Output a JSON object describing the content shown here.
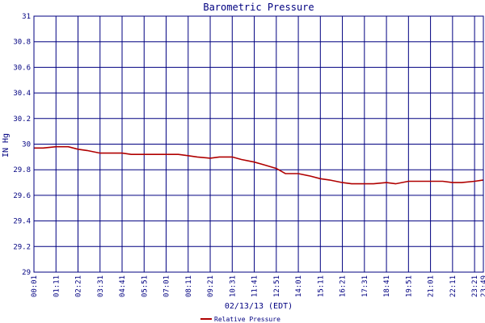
{
  "chart_data": {
    "type": "line",
    "title": "Barometric Pressure",
    "xlabel": "02/13/13 (EDT)",
    "ylabel": "IN Hg",
    "ylim": [
      29,
      31
    ],
    "yticks": [
      "29",
      "29.2",
      "29.4",
      "29.6",
      "29.8",
      "30",
      "30.2",
      "30.4",
      "30.6",
      "30.8",
      "31"
    ],
    "xticks": [
      "00:01",
      "01:11",
      "02:21",
      "03:31",
      "04:41",
      "05:51",
      "07:01",
      "08:11",
      "09:21",
      "10:31",
      "11:41",
      "12:51",
      "14:01",
      "15:11",
      "16:21",
      "17:31",
      "18:41",
      "19:51",
      "21:01",
      "22:11",
      "23:21",
      "23:49"
    ],
    "grid": true,
    "legend_position": "bottom-center",
    "colors": {
      "series": "#b00000",
      "grid": "#000080",
      "text": "#000080"
    },
    "series": [
      {
        "name": "Relative Pressure",
        "x": [
          "00:01",
          "00:30",
          "01:11",
          "01:50",
          "02:21",
          "02:50",
          "03:31",
          "04:00",
          "04:41",
          "05:10",
          "05:51",
          "06:20",
          "07:01",
          "07:40",
          "08:11",
          "08:40",
          "09:21",
          "09:50",
          "10:31",
          "11:00",
          "11:41",
          "12:10",
          "12:51",
          "13:20",
          "14:01",
          "14:40",
          "15:11",
          "15:40",
          "16:21",
          "16:50",
          "17:31",
          "18:00",
          "18:41",
          "19:10",
          "19:51",
          "20:30",
          "21:01",
          "21:40",
          "22:11",
          "22:40",
          "23:21",
          "23:49"
        ],
        "y": [
          29.97,
          29.97,
          29.98,
          29.98,
          29.96,
          29.95,
          29.93,
          29.93,
          29.93,
          29.92,
          29.92,
          29.92,
          29.92,
          29.92,
          29.91,
          29.9,
          29.89,
          29.9,
          29.9,
          29.88,
          29.86,
          29.84,
          29.81,
          29.77,
          29.77,
          29.75,
          29.73,
          29.72,
          29.7,
          29.69,
          29.69,
          29.69,
          29.7,
          29.69,
          29.71,
          29.71,
          29.71,
          29.71,
          29.7,
          29.7,
          29.71,
          29.72
        ]
      }
    ]
  }
}
